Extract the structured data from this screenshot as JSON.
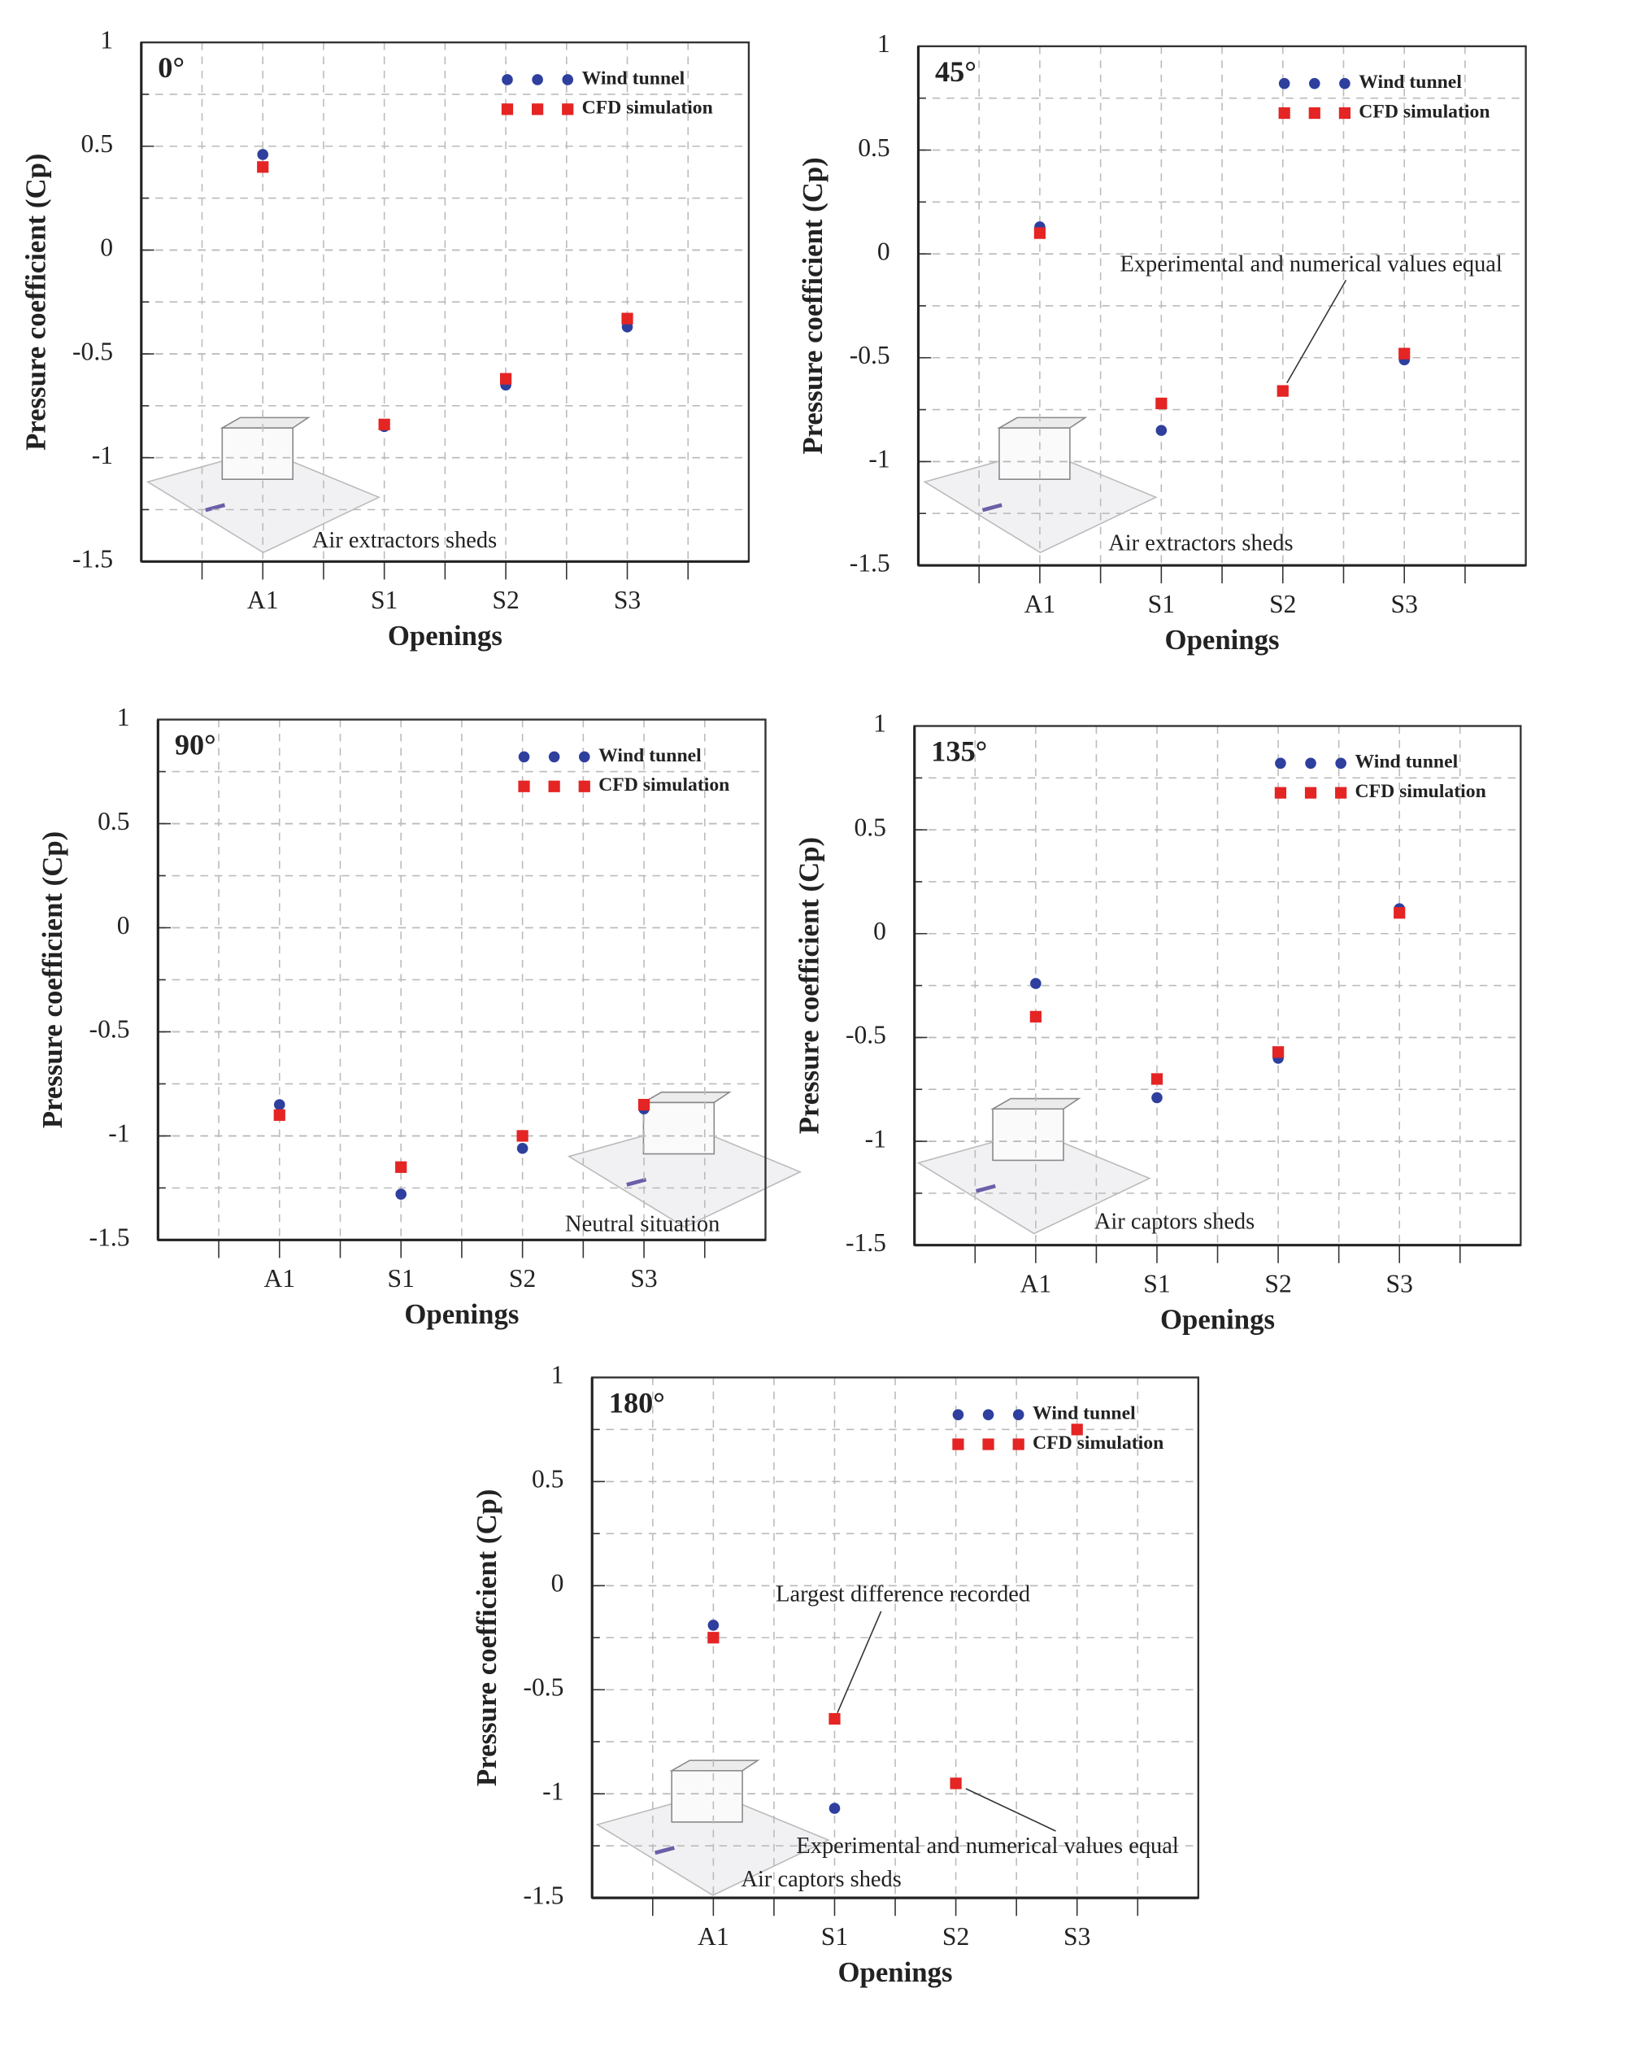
{
  "chart_data": [
    {
      "type": "scatter",
      "title": "0°",
      "x_label": "Openings",
      "y_label": "Pressure coefficient (Cp)",
      "categories": [
        "A1",
        "S1",
        "S2",
        "S3"
      ],
      "series": [
        {
          "name": "Wind tunnel",
          "color": "#2e3f9e",
          "marker": "circle",
          "values": [
            0.46,
            -0.85,
            -0.65,
            -0.37
          ]
        },
        {
          "name": "CFD simulation",
          "color": "#e52424",
          "marker": "square",
          "values": [
            0.4,
            -0.84,
            -0.62,
            -0.33
          ]
        }
      ],
      "ylim": [
        -1.5,
        1
      ],
      "yticks": [
        -1.5,
        -1,
        -0.5,
        0,
        0.5,
        1
      ],
      "grid": true,
      "annotations": [
        "Air extractors sheds"
      ]
    },
    {
      "type": "scatter",
      "title": "45°",
      "x_label": "Openings",
      "y_label": "Pressure coefficient (Cp)",
      "categories": [
        "A1",
        "S1",
        "S2",
        "S3"
      ],
      "series": [
        {
          "name": "Wind tunnel",
          "color": "#2e3f9e",
          "marker": "circle",
          "values": [
            0.13,
            -0.85,
            -0.66,
            -0.51
          ]
        },
        {
          "name": "CFD simulation",
          "color": "#e52424",
          "marker": "square",
          "values": [
            0.1,
            -0.72,
            -0.66,
            -0.48
          ]
        }
      ],
      "ylim": [
        -1.5,
        1
      ],
      "yticks": [
        -1.5,
        -1,
        -0.5,
        0,
        0.5,
        1
      ],
      "grid": true,
      "annotations": [
        "Experimental and numerical values equal",
        "Air extractors sheds"
      ]
    },
    {
      "type": "scatter",
      "title": "90°",
      "x_label": "Openings",
      "y_label": "Pressure coefficient (Cp)",
      "categories": [
        "A1",
        "S1",
        "S2",
        "S3"
      ],
      "series": [
        {
          "name": "Wind tunnel",
          "color": "#2e3f9e",
          "marker": "circle",
          "values": [
            -0.85,
            -1.28,
            -1.06,
            -0.87
          ]
        },
        {
          "name": "CFD simulation",
          "color": "#e52424",
          "marker": "square",
          "values": [
            -0.9,
            -1.15,
            -1.0,
            -0.85
          ]
        }
      ],
      "ylim": [
        -1.5,
        1
      ],
      "yticks": [
        -1.5,
        -1,
        -0.5,
        0,
        0.5,
        1
      ],
      "grid": true,
      "annotations": [
        "Neutral situation"
      ]
    },
    {
      "type": "scatter",
      "title": "135°",
      "x_label": "Openings",
      "y_label": "Pressure coefficient (Cp)",
      "categories": [
        "A1",
        "S1",
        "S2",
        "S3"
      ],
      "series": [
        {
          "name": "Wind tunnel",
          "color": "#2e3f9e",
          "marker": "circle",
          "values": [
            -0.24,
            -0.79,
            -0.6,
            0.12
          ]
        },
        {
          "name": "CFD simulation",
          "color": "#e52424",
          "marker": "square",
          "values": [
            -0.4,
            -0.7,
            -0.57,
            0.1
          ]
        }
      ],
      "ylim": [
        -1.5,
        1
      ],
      "yticks": [
        -1.5,
        -1,
        -0.5,
        0,
        0.5,
        1
      ],
      "grid": true,
      "annotations": [
        "Air captors sheds"
      ]
    },
    {
      "type": "scatter",
      "title": "180°",
      "x_label": "Openings",
      "y_label": "Pressure coefficient (Cp)",
      "categories": [
        "A1",
        "S1",
        "S2",
        "S3"
      ],
      "series": [
        {
          "name": "Wind tunnel",
          "color": "#2e3f9e",
          "marker": "circle",
          "values": [
            -0.19,
            -1.07,
            -0.95,
            0.75
          ]
        },
        {
          "name": "CFD simulation",
          "color": "#e52424",
          "marker": "square",
          "values": [
            -0.25,
            -0.64,
            -0.95,
            0.75
          ]
        }
      ],
      "ylim": [
        -1.5,
        1
      ],
      "yticks": [
        -1.5,
        -1,
        -0.5,
        0,
        0.5,
        1
      ],
      "grid": true,
      "annotations": [
        "Largest difference recorded",
        "Experimental and numerical values equal",
        "Air captors sheds"
      ]
    }
  ]
}
